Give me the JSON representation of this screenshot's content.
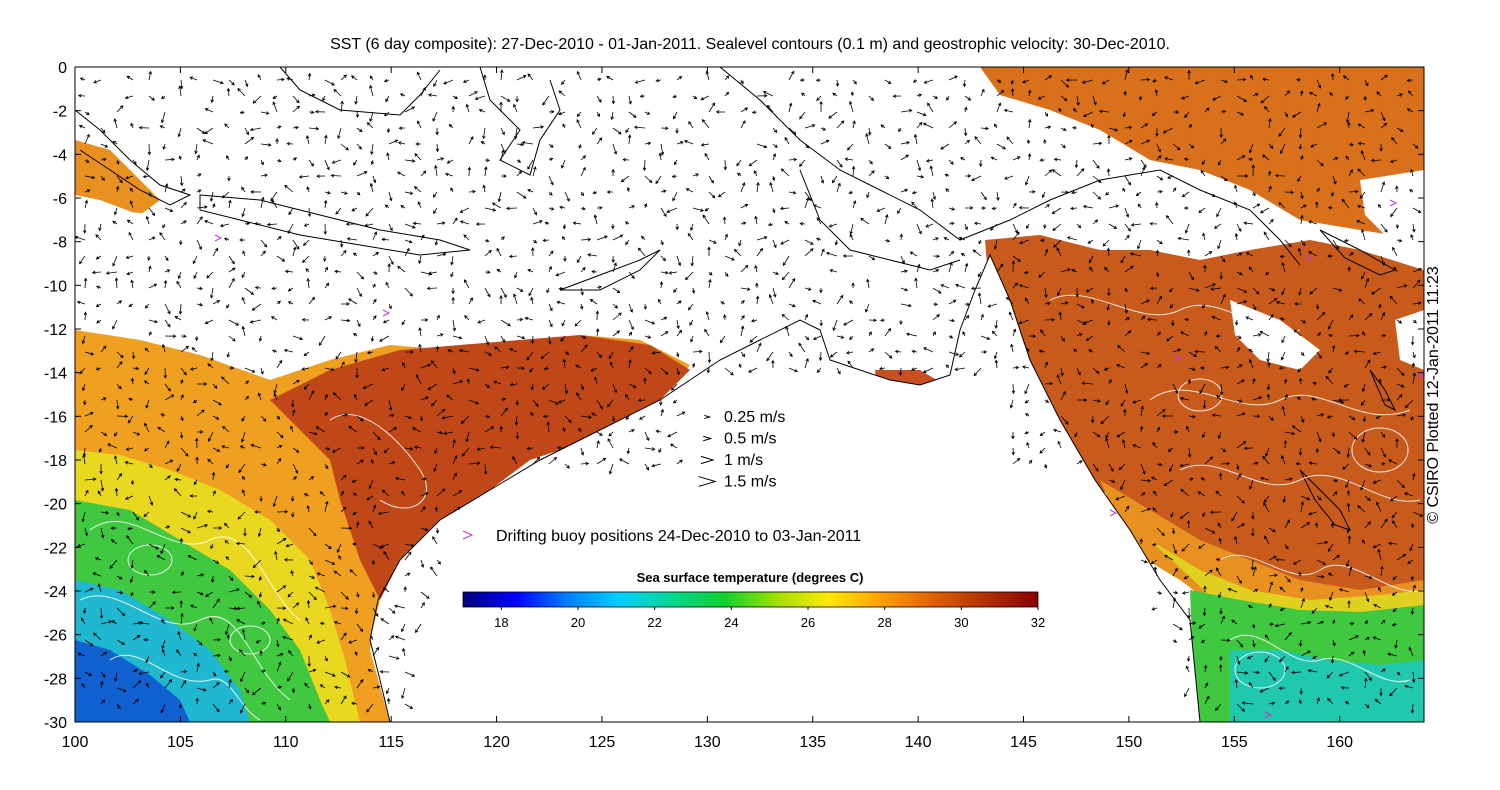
{
  "title": "SST (6 day composite): 27-Dec-2010 - 01-Jan-2011. Sealevel contours (0.1 m) and geostrophic velocity: 30-Dec-2010.",
  "credit": "© CSIRO Plotted 12-Jan-2011 11:23",
  "axes": {
    "x_range": [
      100,
      164
    ],
    "y_range": [
      -30,
      0
    ],
    "x_ticks": [
      100,
      105,
      110,
      115,
      120,
      125,
      130,
      135,
      140,
      145,
      150,
      155,
      160
    ],
    "y_ticks": [
      0,
      -2,
      -4,
      -6,
      -8,
      -10,
      -12,
      -14,
      -16,
      -18,
      -20,
      -22,
      -24,
      -26,
      -28,
      -30
    ]
  },
  "velocity_legend": [
    {
      "label": "0.25 m/s",
      "speed": 0.25
    },
    {
      "label": "0.5 m/s",
      "speed": 0.5
    },
    {
      "label": "1 m/s",
      "speed": 1
    },
    {
      "label": "1.5 m/s",
      "speed": 1.5
    }
  ],
  "buoy_legend": {
    "label": "Drifting buoy positions 24-Dec-2010 to 03-Jan-2011",
    "marker": ">",
    "color": "#cc33cc"
  },
  "colorbar": {
    "title": "Sea surface temperature (degrees C)",
    "range": [
      17,
      32
    ],
    "ticks": [
      18,
      20,
      22,
      24,
      26,
      28,
      30,
      32
    ],
    "colors": [
      "#00007f",
      "#0000ff",
      "#0080ff",
      "#00d0ff",
      "#00d890",
      "#10d030",
      "#a0e000",
      "#ffe800",
      "#ffa000",
      "#e06000",
      "#b03000",
      "#8b0000"
    ]
  },
  "colors": {
    "land": "#ffffff",
    "coast": "#000000",
    "contour": "#ffffff",
    "arrow": "#000000"
  }
}
